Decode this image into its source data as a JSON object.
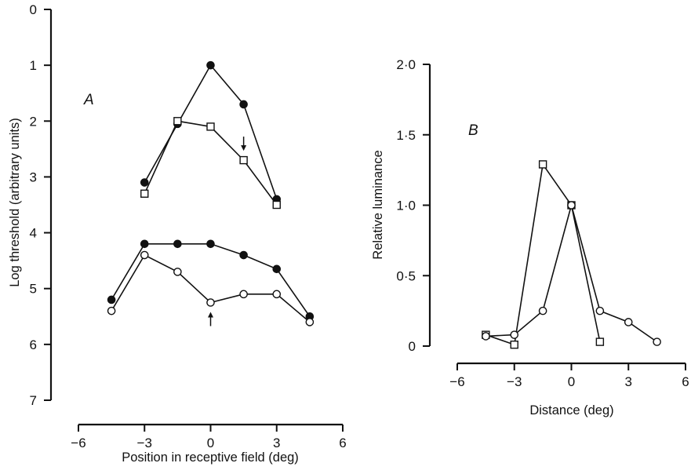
{
  "chart_data": [
    {
      "type": "line",
      "panel_label": "A",
      "xlabel": "Position in receptive field (deg)",
      "ylabel": "Log threshold  (arbitrary units)",
      "xlim": [
        -6,
        6
      ],
      "ylim": [
        0,
        7
      ],
      "y_inverted": true,
      "xticks": [
        -6,
        -3,
        0,
        3,
        6
      ],
      "yticks": [
        0,
        1,
        2,
        3,
        4,
        5,
        6,
        7
      ],
      "xtick_labels": [
        "−6",
        "−3",
        "0",
        "3",
        "6"
      ],
      "ytick_labels": [
        "0",
        "1",
        "2",
        "3",
        "4",
        "5",
        "6",
        "7"
      ],
      "grid": false,
      "series": [
        {
          "marker": "filled-circle",
          "x": [
            -3,
            -1.5,
            0,
            1.5,
            3
          ],
          "y": [
            3.1,
            2.05,
            1.0,
            1.7,
            3.4
          ]
        },
        {
          "marker": "open-square",
          "x": [
            -3,
            -1.5,
            0,
            1.5,
            3
          ],
          "y": [
            3.3,
            2.0,
            2.1,
            2.7,
            3.5
          ]
        },
        {
          "marker": "filled-circle",
          "x": [
            -4.5,
            -3,
            -1.5,
            0,
            1.5,
            3,
            4.5
          ],
          "y": [
            5.2,
            4.2,
            4.2,
            4.2,
            4.4,
            4.65,
            5.5
          ]
        },
        {
          "marker": "open-circle",
          "x": [
            -4.5,
            -3,
            -1.5,
            0,
            1.5,
            3,
            4.5
          ],
          "y": [
            5.4,
            4.4,
            4.7,
            5.25,
            5.1,
            5.1,
            5.6
          ]
        }
      ],
      "annotations": [
        {
          "type": "down-arrow",
          "x": 1.5,
          "y": 2.7
        },
        {
          "type": "up-arrow",
          "x": 0,
          "y": 5.25
        }
      ]
    },
    {
      "type": "line",
      "panel_label": "B",
      "xlabel": "Distance (deg)",
      "ylabel": "Relative luminance",
      "xlim": [
        -6,
        6
      ],
      "ylim": [
        0,
        2
      ],
      "xticks": [
        -6,
        -3,
        0,
        3,
        6
      ],
      "yticks": [
        0,
        0.5,
        1.0,
        1.5,
        2.0
      ],
      "xtick_labels": [
        "−6",
        "−3",
        "0",
        "3",
        "6"
      ],
      "ytick_labels": [
        "0",
        "0·5",
        "1·0",
        "1·5",
        "2·0"
      ],
      "grid": false,
      "series": [
        {
          "marker": "open-square",
          "x": [
            -4.5,
            -3,
            -1.5,
            0,
            1.5
          ],
          "y": [
            0.08,
            0.01,
            1.29,
            1.0,
            0.03
          ]
        },
        {
          "marker": "open-circle",
          "x": [
            -4.5,
            -3,
            -1.5,
            0,
            1.5,
            3,
            4.5
          ],
          "y": [
            0.07,
            0.08,
            0.25,
            1.0,
            0.25,
            0.17,
            0.03
          ]
        }
      ]
    }
  ]
}
